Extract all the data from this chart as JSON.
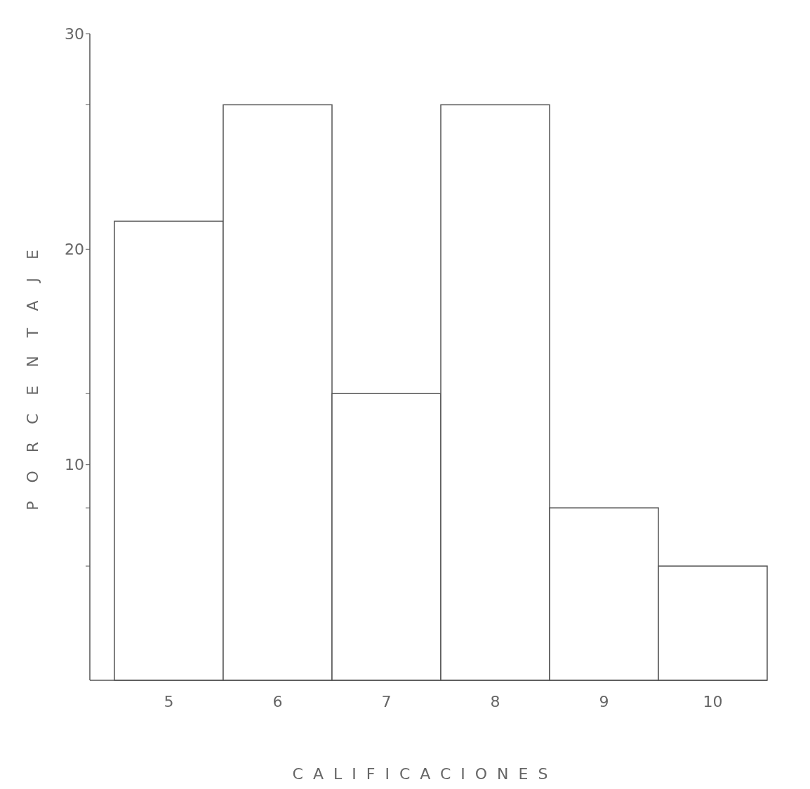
{
  "chart_data": {
    "type": "bar",
    "xlabel": "CALIFICACIONES",
    "ylabel": "PORCENTAJE",
    "categories": [
      "5",
      "6",
      "7",
      "8",
      "9",
      "10"
    ],
    "values": [
      21.3,
      26.7,
      13.3,
      26.7,
      8,
      5.3
    ],
    "color": "#ffffff",
    "ylim": [
      0,
      30
    ],
    "yticks": [
      {
        "value": 5.3,
        "label": null
      },
      {
        "value": 8,
        "label": null
      },
      10,
      {
        "value": 13.3,
        "label": null
      },
      20,
      {
        "value": 26.7,
        "label": null
      },
      30
    ],
    "grid": false
  }
}
